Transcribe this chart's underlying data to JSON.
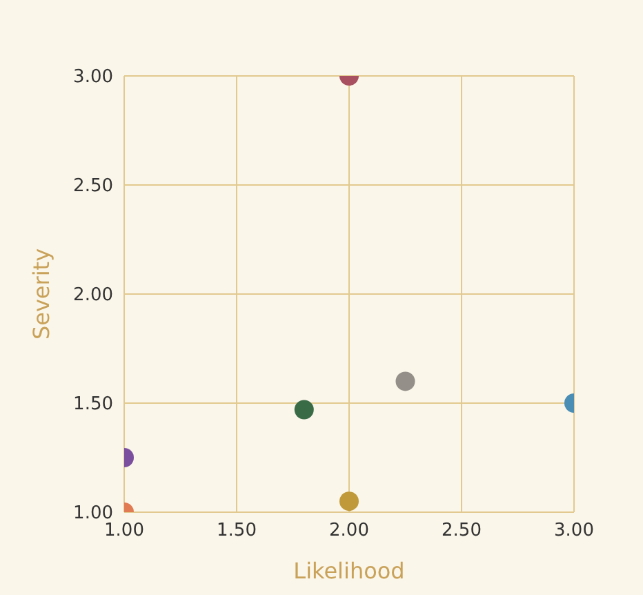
{
  "chart_data": {
    "type": "scatter",
    "xlabel": "Likelihood",
    "ylabel": "Severity",
    "x": [
      1.0,
      1.0,
      1.8,
      2.0,
      2.0,
      2.25,
      3.0
    ],
    "values": [
      1.0,
      1.25,
      1.47,
      3.0,
      1.05,
      1.6,
      1.5
    ],
    "colors": [
      "#e07b53",
      "#7b4f9e",
      "#3a6b47",
      "#a8505f",
      "#c09a3a",
      "#949089",
      "#4a8db5"
    ],
    "xlim": [
      1.0,
      3.0
    ],
    "ylim": [
      1.0,
      3.0
    ],
    "xticks": [
      {
        "value": 1.0,
        "label": "1.00"
      },
      {
        "value": 1.5,
        "label": "1.50"
      },
      {
        "value": 2.0,
        "label": "2.00"
      },
      {
        "value": 2.5,
        "label": "2.50"
      },
      {
        "value": 3.0,
        "label": "3.00"
      }
    ],
    "yticks": [
      {
        "value": 1.0,
        "label": "1.00"
      },
      {
        "value": 1.5,
        "label": "1.50"
      },
      {
        "value": 2.0,
        "label": "2.00"
      },
      {
        "value": 2.5,
        "label": "2.50"
      },
      {
        "value": 3.0,
        "label": "3.00"
      }
    ],
    "grid": true,
    "marker": "circle"
  }
}
